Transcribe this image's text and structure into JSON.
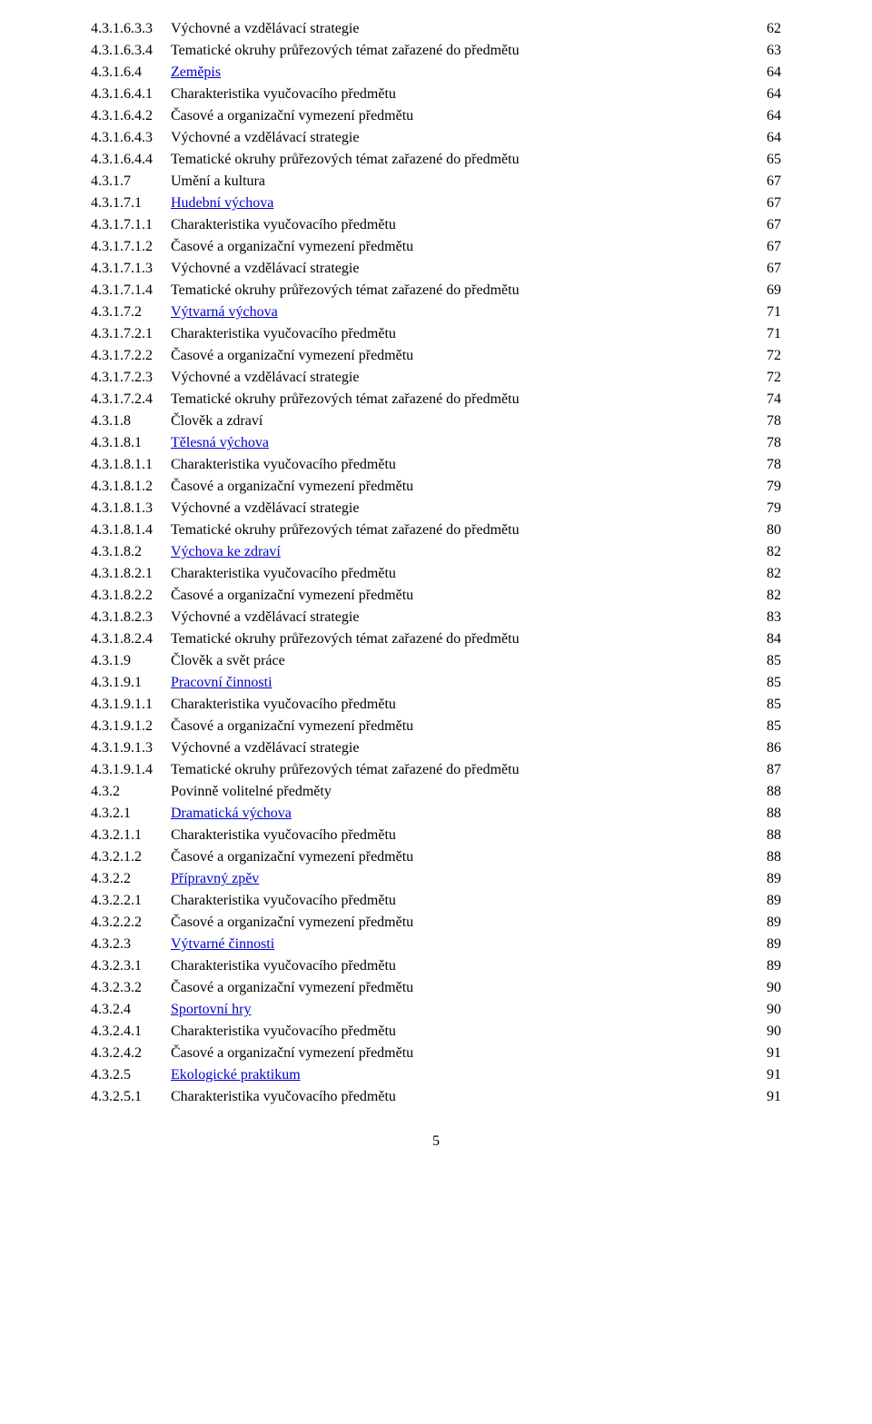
{
  "page_number": "5",
  "font": {
    "family": "Times New Roman",
    "body_size_pt": 12,
    "link_color": "#0000cc",
    "text_color": "#000000",
    "background_color": "#ffffff"
  },
  "toc": [
    {
      "num": "4.3.1.6.3.3",
      "title": "Výchovné a vzdělávací strategie",
      "page": "62",
      "link": false
    },
    {
      "num": "4.3.1.6.3.4",
      "title": "Tematické okruhy průřezových témat zařazené do předmětu",
      "page": "63",
      "link": false
    },
    {
      "num": "4.3.1.6.4",
      "title": "Zeměpis",
      "page": "64",
      "link": true
    },
    {
      "num": "4.3.1.6.4.1",
      "title": "Charakteristika vyučovacího předmětu",
      "page": "64",
      "link": false
    },
    {
      "num": "4.3.1.6.4.2",
      "title": "Časové a organizační vymezení předmětu",
      "page": "64",
      "link": false
    },
    {
      "num": "4.3.1.6.4.3",
      "title": "Výchovné a vzdělávací strategie",
      "page": "64",
      "link": false
    },
    {
      "num": "4.3.1.6.4.4",
      "title": "Tematické okruhy průřezových témat zařazené do předmětu",
      "page": "65",
      "link": false
    },
    {
      "num": "4.3.1.7",
      "title": "Umění a kultura",
      "page": "67",
      "link": false
    },
    {
      "num": "4.3.1.7.1",
      "title": "Hudební výchova",
      "page": "67",
      "link": true
    },
    {
      "num": "4.3.1.7.1.1",
      "title": "Charakteristika vyučovacího předmětu",
      "page": "67",
      "link": false
    },
    {
      "num": "4.3.1.7.1.2",
      "title": "Časové a organizační vymezení předmětu",
      "page": "67",
      "link": false
    },
    {
      "num": "4.3.1.7.1.3",
      "title": "Výchovné a vzdělávací strategie",
      "page": "67",
      "link": false
    },
    {
      "num": "4.3.1.7.1.4",
      "title": "Tematické okruhy průřezových témat zařazené do předmětu",
      "page": "69",
      "link": false
    },
    {
      "num": "4.3.1.7.2",
      "title": "Výtvarná výchova",
      "page": "71",
      "link": true
    },
    {
      "num": "4.3.1.7.2.1",
      "title": "Charakteristika vyučovacího předmětu",
      "page": "71",
      "link": false
    },
    {
      "num": "4.3.1.7.2.2",
      "title": "Časové a organizační vymezení předmětu",
      "page": "72",
      "link": false
    },
    {
      "num": "4.3.1.7.2.3",
      "title": "Výchovné a vzdělávací strategie",
      "page": "72",
      "link": false
    },
    {
      "num": "4.3.1.7.2.4",
      "title": "Tematické okruhy průřezových témat zařazené do předmětu",
      "page": "74",
      "link": false
    },
    {
      "num": "4.3.1.8",
      "title": "Člověk a zdraví",
      "page": "78",
      "link": false
    },
    {
      "num": "4.3.1.8.1",
      "title": "Tělesná výchova",
      "page": "78",
      "link": true
    },
    {
      "num": "4.3.1.8.1.1",
      "title": "Charakteristika vyučovacího předmětu",
      "page": "78",
      "link": false
    },
    {
      "num": "4.3.1.8.1.2",
      "title": "Časové a organizační vymezení předmětu",
      "page": "79",
      "link": false
    },
    {
      "num": "4.3.1.8.1.3",
      "title": "Výchovné a vzdělávací strategie",
      "page": "79",
      "link": false
    },
    {
      "num": "4.3.1.8.1.4",
      "title": "Tematické okruhy průřezových témat zařazené do předmětu",
      "page": "80",
      "link": false
    },
    {
      "num": "4.3.1.8.2",
      "title": "Výchova ke zdraví",
      "page": "82",
      "link": true
    },
    {
      "num": "4.3.1.8.2.1",
      "title": "Charakteristika vyučovacího předmětu",
      "page": "82",
      "link": false
    },
    {
      "num": "4.3.1.8.2.2",
      "title": "Časové a organizační vymezení předmětu",
      "page": "82",
      "link": false
    },
    {
      "num": "4.3.1.8.2.3",
      "title": "Výchovné a vzdělávací strategie",
      "page": "83",
      "link": false
    },
    {
      "num": "4.3.1.8.2.4",
      "title": "Tematické okruhy průřezových témat zařazené do předmětu",
      "page": "84",
      "link": false
    },
    {
      "num": "4.3.1.9",
      "title": "Člověk a svět práce",
      "page": "85",
      "link": false
    },
    {
      "num": "4.3.1.9.1",
      "title": "Pracovní činnosti",
      "page": "85",
      "link": true
    },
    {
      "num": "4.3.1.9.1.1",
      "title": "Charakteristika vyučovacího předmětu",
      "page": "85",
      "link": false
    },
    {
      "num": "4.3.1.9.1.2",
      "title": "Časové a organizační vymezení předmětu",
      "page": "85",
      "link": false
    },
    {
      "num": "4.3.1.9.1.3",
      "title": "Výchovné a vzdělávací strategie",
      "page": "86",
      "link": false
    },
    {
      "num": "4.3.1.9.1.4",
      "title": "Tematické okruhy průřezových témat zařazené do předmětu",
      "page": "87",
      "link": false
    },
    {
      "num": "4.3.2",
      "title": "Povinně volitelné předměty",
      "page": "88",
      "link": false
    },
    {
      "num": "4.3.2.1",
      "title": "Dramatická výchova",
      "page": "88",
      "link": true
    },
    {
      "num": "4.3.2.1.1",
      "title": "Charakteristika vyučovacího předmětu",
      "page": "88",
      "link": false
    },
    {
      "num": "4.3.2.1.2",
      "title": "Časové a organizační vymezení předmětu",
      "page": "88",
      "link": false
    },
    {
      "num": "4.3.2.2",
      "title": "Přípravný zpěv",
      "page": "89",
      "link": true
    },
    {
      "num": "4.3.2.2.1",
      "title": "Charakteristika vyučovacího předmětu",
      "page": "89",
      "link": false
    },
    {
      "num": "4.3.2.2.2",
      "title": "Časové a organizační vymezení předmětu",
      "page": "89",
      "link": false
    },
    {
      "num": "4.3.2.3",
      "title": "Výtvarné činnosti",
      "page": "89",
      "link": true
    },
    {
      "num": "4.3.2.3.1",
      "title": "Charakteristika vyučovacího předmětu",
      "page": "89",
      "link": false
    },
    {
      "num": "4.3.2.3.2",
      "title": "Časové a organizační vymezení předmětu",
      "page": "90",
      "link": false
    },
    {
      "num": "4.3.2.4",
      "title": "Sportovní hry",
      "page": "90",
      "link": true
    },
    {
      "num": "4.3.2.4.1",
      "title": "Charakteristika vyučovacího předmětu",
      "page": "90",
      "link": false
    },
    {
      "num": "4.3.2.4.2",
      "title": "Časové a organizační vymezení předmětu",
      "page": "91",
      "link": false
    },
    {
      "num": "4.3.2.5",
      "title": "Ekologické praktikum",
      "page": "91",
      "link": true
    },
    {
      "num": "4.3.2.5.1",
      "title": "Charakteristika vyučovacího předmětu",
      "page": "91",
      "link": false
    }
  ]
}
